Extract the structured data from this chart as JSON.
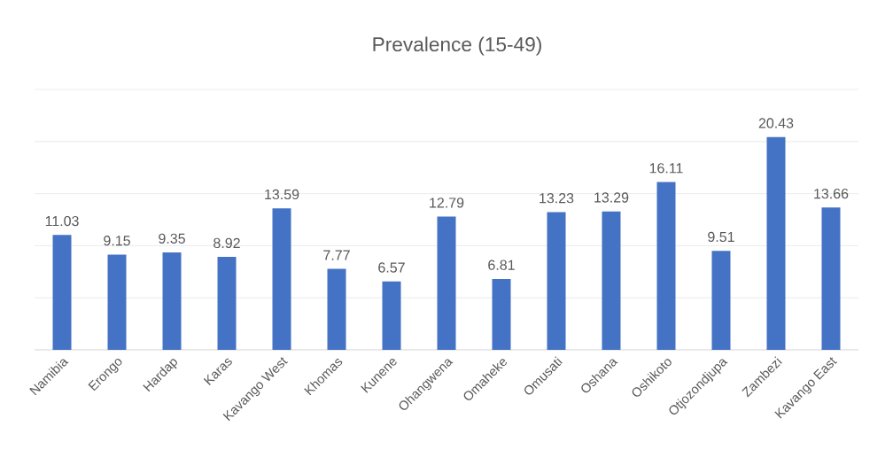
{
  "chart_data": {
    "type": "bar",
    "title": "Prevalence (15-49)",
    "categories": [
      "Namibia",
      "Erongo",
      "Hardap",
      "Karas",
      "Kavango West",
      "Khomas",
      "Kunene",
      "Ohangwena",
      "Omaheke",
      "Omusati",
      "Oshana",
      "Oshikoto",
      "Otjozondjupa",
      "Zambezi",
      "Kavango East"
    ],
    "values": [
      11.03,
      9.15,
      9.35,
      8.92,
      13.59,
      7.77,
      6.57,
      12.79,
      6.81,
      13.23,
      13.29,
      16.11,
      9.51,
      20.43,
      13.66
    ],
    "color": "#4472c4",
    "ylim": [
      0,
      25
    ],
    "yticks": [
      {
        "value": 0,
        "label": null
      },
      {
        "value": 5,
        "label": null
      },
      {
        "value": 10,
        "label": null
      },
      {
        "value": 15,
        "label": null
      },
      {
        "value": 20,
        "label": null
      },
      {
        "value": 25,
        "label": null
      }
    ],
    "tick_labels": "x",
    "grid": "y",
    "data_labels": true
  }
}
